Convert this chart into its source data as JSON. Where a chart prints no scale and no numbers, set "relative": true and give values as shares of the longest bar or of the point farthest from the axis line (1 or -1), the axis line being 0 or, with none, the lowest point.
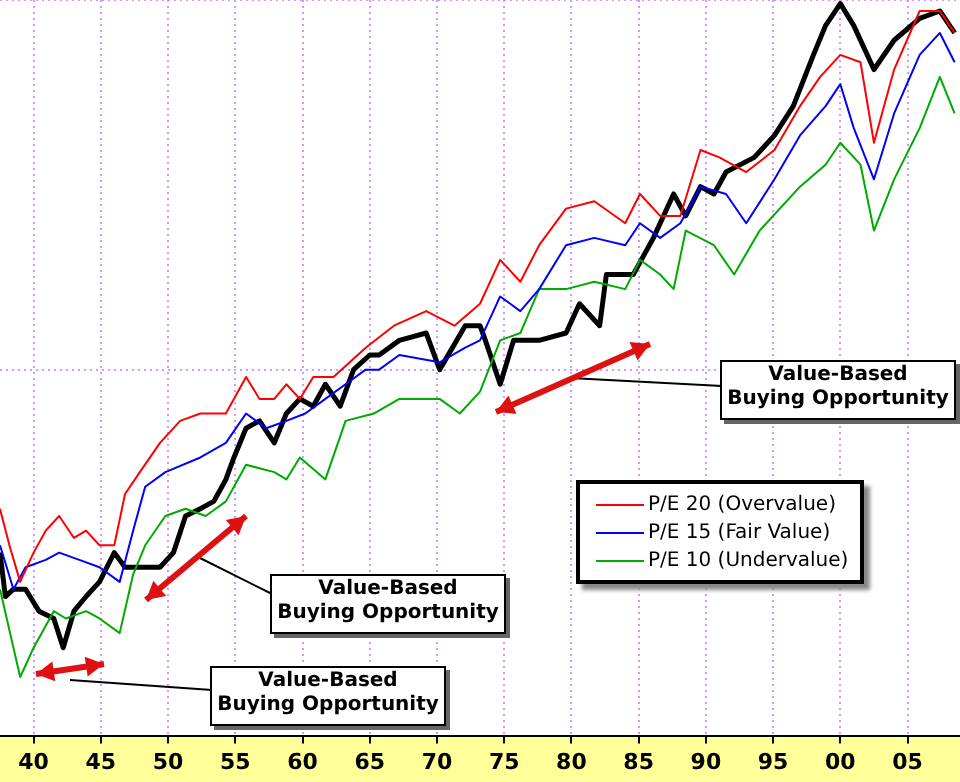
{
  "chart_data": {
    "type": "line",
    "relative": true,
    "grid": true,
    "legend": "right",
    "line_style": "solid",
    "xlim": [
      1937.5,
      2008.9
    ],
    "xticks": [
      {
        "value": 1940,
        "label": "40"
      },
      {
        "value": 1945,
        "label": "45"
      },
      {
        "value": 1950,
        "label": "50"
      },
      {
        "value": 1955,
        "label": "55"
      },
      {
        "value": 1960,
        "label": "60"
      },
      {
        "value": 1965,
        "label": "65"
      },
      {
        "value": 1970,
        "label": "70"
      },
      {
        "value": 1975,
        "label": "75"
      },
      {
        "value": 1980,
        "label": "80"
      },
      {
        "value": 1985,
        "label": "85"
      },
      {
        "value": 1990,
        "label": "90"
      },
      {
        "value": 1995,
        "label": "95"
      },
      {
        "value": 2000,
        "label": "00"
      },
      {
        "value": 2005,
        "label": "05"
      }
    ],
    "annotations": [
      "Value-Based\nBuying Opportunity",
      "Value-Based\nBuying Opportunity",
      "Value-Based\nBuying Opportunity"
    ],
    "series": [
      {
        "name": "P/E 20 (Overvalue)",
        "color": "#ff0000",
        "x": [
          1937.5,
          1938.2,
          1939.0,
          1940.0,
          1940.9,
          1941.9,
          1943.0,
          1943.9,
          1944.9,
          1946.0,
          1946.8,
          1947.9,
          1949.4,
          1950.9,
          1952.4,
          1954.3,
          1955.8,
          1956.8,
          1957.9,
          1958.8,
          1959.8,
          1960.8,
          1962.3,
          1964.7,
          1966.8,
          1969.2,
          1971.3,
          1973.2,
          1974.7,
          1976.2,
          1977.6,
          1979.6,
          1981.7,
          1984.0,
          1985.1,
          1986.6,
          1988.1,
          1989.6,
          1991.0,
          1993.0,
          1995.1,
          1997.0,
          1998.5,
          2000.0,
          2001.5,
          2002.5,
          2004.0,
          2005.9,
          2007.4,
          2008.5
        ],
        "values": [
          0.31,
          0.26,
          0.21,
          0.25,
          0.28,
          0.3,
          0.27,
          0.28,
          0.26,
          0.26,
          0.33,
          0.36,
          0.4,
          0.43,
          0.44,
          0.44,
          0.49,
          0.46,
          0.46,
          0.48,
          0.46,
          0.49,
          0.49,
          0.53,
          0.56,
          0.58,
          0.56,
          0.59,
          0.65,
          0.62,
          0.67,
          0.72,
          0.73,
          0.7,
          0.74,
          0.71,
          0.71,
          0.8,
          0.79,
          0.77,
          0.8,
          0.86,
          0.9,
          0.93,
          0.92,
          0.81,
          0.91,
          0.99,
          0.99,
          0.96
        ]
      },
      {
        "name": "P/E 15 (Fair Value)",
        "color": "#0000ff",
        "x": [
          1937.5,
          1938.5,
          1939.4,
          1940.9,
          1941.9,
          1943.4,
          1944.9,
          1946.4,
          1947.4,
          1948.3,
          1949.8,
          1952.4,
          1954.3,
          1955.8,
          1957.3,
          1958.8,
          1960.2,
          1961.7,
          1963.2,
          1964.7,
          1965.7,
          1967.2,
          1970.2,
          1972.1,
          1973.2,
          1974.7,
          1976.2,
          1977.6,
          1979.6,
          1981.7,
          1984.0,
          1985.1,
          1986.6,
          1988.1,
          1989.6,
          1991.5,
          1993.0,
          1995.1,
          1997.0,
          1998.9,
          2000.0,
          2001.0,
          2002.5,
          2004.0,
          2005.9,
          2007.4,
          2008.5
        ],
        "values": [
          0.26,
          0.2,
          0.23,
          0.24,
          0.25,
          0.24,
          0.23,
          0.21,
          0.28,
          0.34,
          0.36,
          0.38,
          0.4,
          0.44,
          0.42,
          0.43,
          0.44,
          0.46,
          0.48,
          0.5,
          0.5,
          0.52,
          0.51,
          0.53,
          0.54,
          0.6,
          0.58,
          0.61,
          0.67,
          0.68,
          0.67,
          0.7,
          0.68,
          0.7,
          0.75,
          0.74,
          0.7,
          0.76,
          0.82,
          0.86,
          0.89,
          0.83,
          0.76,
          0.85,
          0.93,
          0.96,
          0.92
        ]
      },
      {
        "name": "P/E 10 (Undervalue)",
        "color": "#00aa00",
        "x": [
          1937.5,
          1939.0,
          1940.0,
          1941.5,
          1942.4,
          1943.9,
          1944.9,
          1946.4,
          1947.4,
          1948.3,
          1949.8,
          1951.3,
          1952.8,
          1954.3,
          1955.8,
          1957.9,
          1958.8,
          1959.8,
          1961.7,
          1963.2,
          1965.3,
          1967.2,
          1970.2,
          1971.7,
          1973.2,
          1974.7,
          1976.2,
          1977.6,
          1979.6,
          1981.7,
          1984.0,
          1985.1,
          1986.6,
          1987.6,
          1988.5,
          1990.6,
          1992.1,
          1994.0,
          1997.0,
          1998.9,
          2000.0,
          2001.5,
          2002.5,
          2004.0,
          2005.9,
          2007.4,
          2008.5
        ],
        "values": [
          0.2,
          0.08,
          0.12,
          0.17,
          0.16,
          0.17,
          0.16,
          0.14,
          0.22,
          0.26,
          0.3,
          0.31,
          0.3,
          0.32,
          0.37,
          0.36,
          0.35,
          0.38,
          0.35,
          0.43,
          0.44,
          0.46,
          0.46,
          0.44,
          0.47,
          0.54,
          0.55,
          0.61,
          0.61,
          0.62,
          0.61,
          0.65,
          0.63,
          0.61,
          0.69,
          0.67,
          0.63,
          0.69,
          0.75,
          0.78,
          0.81,
          0.78,
          0.69,
          0.76,
          0.83,
          0.9,
          0.85
        ]
      },
      {
        "color": "#000000",
        "x": [
          1937.5,
          1937.9,
          1938.5,
          1939.4,
          1940.4,
          1941.5,
          1942.2,
          1943.0,
          1943.9,
          1944.9,
          1946.0,
          1946.8,
          1947.9,
          1949.4,
          1950.4,
          1951.3,
          1952.4,
          1953.4,
          1954.3,
          1954.9,
          1955.8,
          1956.8,
          1957.9,
          1958.8,
          1959.8,
          1960.8,
          1961.7,
          1962.8,
          1963.8,
          1965.0,
          1965.7,
          1967.2,
          1969.2,
          1970.2,
          1972.1,
          1973.2,
          1973.6,
          1974.7,
          1975.7,
          1977.6,
          1979.6,
          1980.6,
          1982.1,
          1982.6,
          1984.6,
          1986.1,
          1987.6,
          1988.5,
          1989.6,
          1990.6,
          1991.5,
          1993.6,
          1995.1,
          1996.5,
          1998.0,
          1998.9,
          2000.0,
          2001.0,
          2002.5,
          2004.0,
          2005.9,
          2007.4,
          2008.5
        ],
        "values": [
          0.25,
          0.19,
          0.2,
          0.2,
          0.17,
          0.16,
          0.12,
          0.17,
          0.19,
          0.21,
          0.25,
          0.23,
          0.23,
          0.23,
          0.25,
          0.3,
          0.31,
          0.32,
          0.35,
          0.38,
          0.42,
          0.43,
          0.4,
          0.44,
          0.46,
          0.45,
          0.48,
          0.45,
          0.5,
          0.52,
          0.52,
          0.54,
          0.55,
          0.5,
          0.56,
          0.56,
          0.54,
          0.48,
          0.54,
          0.54,
          0.55,
          0.59,
          0.56,
          0.63,
          0.63,
          0.68,
          0.74,
          0.71,
          0.75,
          0.74,
          0.77,
          0.79,
          0.82,
          0.86,
          0.93,
          0.97,
          1,
          0.97,
          0.91,
          0.95,
          0.98,
          0.99,
          0.96
        ]
      }
    ]
  }
}
